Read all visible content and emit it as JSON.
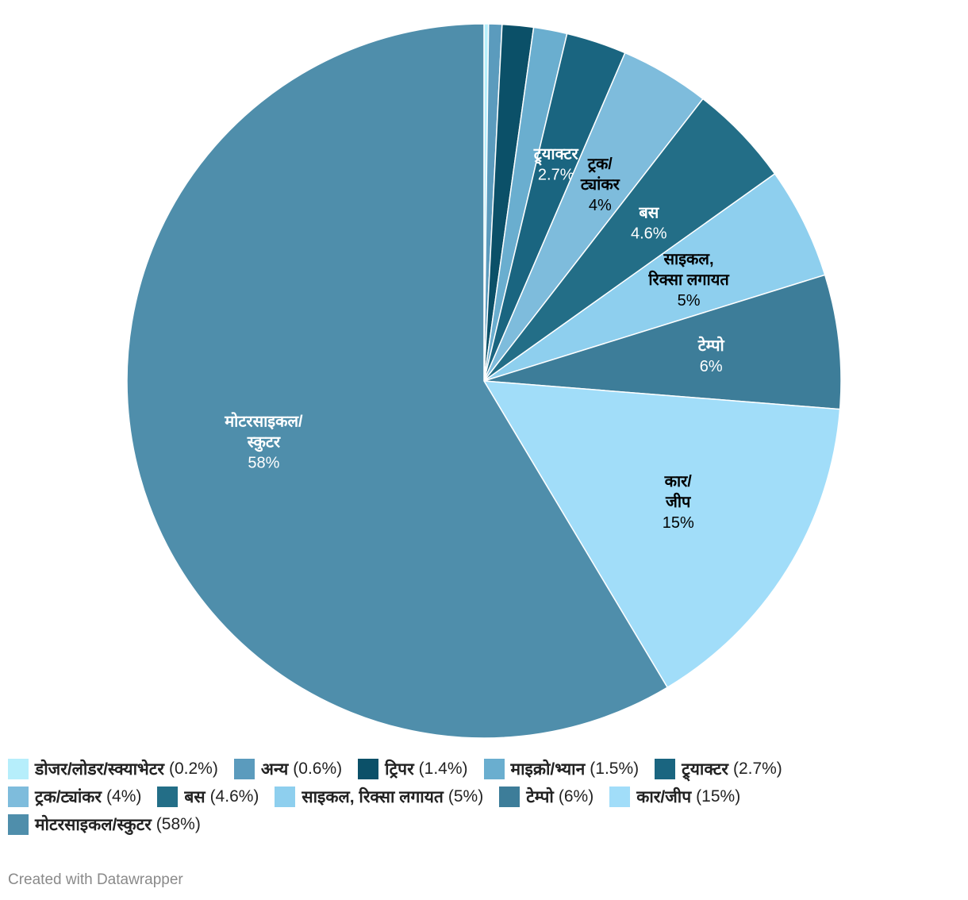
{
  "chart_data": {
    "type": "pie",
    "categories": [
      "डोजर/लोडर/स्क्याभेटर",
      "अन्य",
      "ट्रिपर",
      "माइक्रो/भ्यान",
      "ट्र्याक्टर",
      "ट्रक/ट्यांकर",
      "बस",
      "साइकल, रिक्सा लगायत",
      "टेम्पो",
      "कार/जीप",
      "मोटरसाइकल/स्कुटर"
    ],
    "values": [
      0.2,
      0.6,
      1.4,
      1.5,
      2.7,
      4,
      4.6,
      5,
      6,
      15,
      58
    ],
    "value_labels": [
      "0.2%",
      "0.6%",
      "1.4%",
      "1.5%",
      "2.7%",
      "4%",
      "4.6%",
      "5%",
      "6%",
      "15%",
      "58%"
    ],
    "legend_labels": [
      "(0.2%)",
      "(0.6%)",
      "(1.4%)",
      "(1.5%)",
      "(2.7%)",
      "(4%)",
      "(4.6%)",
      "(5%)",
      "(6%)",
      "(15%)",
      "(58%)"
    ],
    "colors": [
      "#b6eefb",
      "#5b9bbd",
      "#0b5068",
      "#6aaecf",
      "#1a6580",
      "#7ebcdc",
      "#236e87",
      "#8ecfee",
      "#3d7d99",
      "#a1ddf9",
      "#4f8eab"
    ],
    "legend": "bottom-left"
  },
  "footer": "Created with Datawrapper"
}
